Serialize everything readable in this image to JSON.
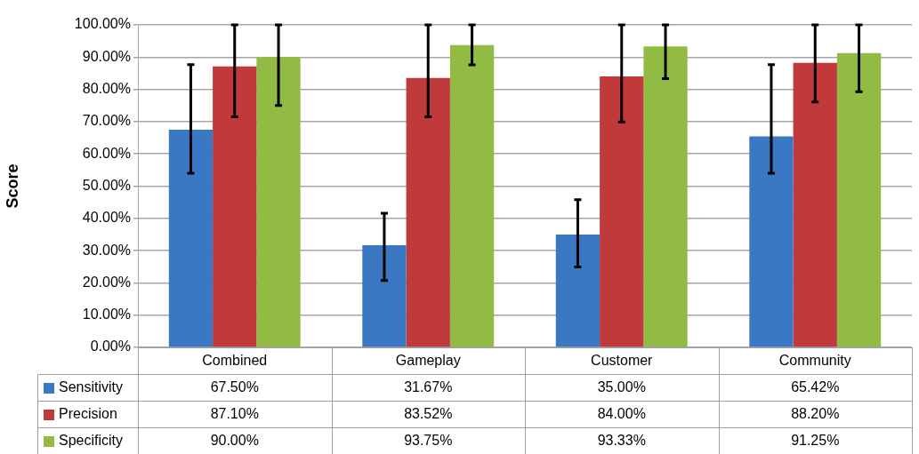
{
  "chart_data": {
    "type": "bar",
    "ylabel": "Score",
    "categories": [
      "Combined",
      "Gameplay",
      "Customer",
      "Community"
    ],
    "series": [
      {
        "name": "Sensitivity",
        "color": "#3a78c3",
        "values": [
          67.5,
          31.67,
          35.0,
          65.42
        ],
        "value_labels": [
          "67.50%",
          "31.67%",
          "35.00%",
          "65.42%"
        ],
        "errors": [
          [
            54.0,
            87.7
          ],
          [
            20.7,
            41.6
          ],
          [
            24.9,
            45.8
          ],
          [
            54.0,
            87.7
          ]
        ]
      },
      {
        "name": "Precision",
        "color": "#c0393b",
        "values": [
          87.1,
          83.52,
          84.0,
          88.2
        ],
        "value_labels": [
          "87.10%",
          "83.52%",
          "84.00%",
          "88.20%"
        ],
        "errors": [
          [
            71.5,
            100
          ],
          [
            71.5,
            100
          ],
          [
            69.9,
            100
          ],
          [
            76.1,
            100
          ]
        ]
      },
      {
        "name": "Specificity",
        "color": "#92bb44",
        "values": [
          90.0,
          93.75,
          93.33,
          91.25
        ],
        "value_labels": [
          "90.00%",
          "93.75%",
          "93.33%",
          "91.25%"
        ],
        "errors": [
          [
            75.0,
            100
          ],
          [
            87.6,
            100
          ],
          [
            83.3,
            100
          ],
          [
            79.3,
            100
          ]
        ]
      }
    ],
    "ylim": [
      0,
      100
    ],
    "yticks": [
      {
        "value": 0,
        "label": "0.00%"
      },
      {
        "value": 10,
        "label": "10.00%"
      },
      {
        "value": 20,
        "label": "20.00%"
      },
      {
        "value": 30,
        "label": "30.00%"
      },
      {
        "value": 40,
        "label": "40.00%"
      },
      {
        "value": 50,
        "label": "50.00%"
      },
      {
        "value": 60,
        "label": "60.00%"
      },
      {
        "value": 70,
        "label": "70.00%"
      },
      {
        "value": 80,
        "label": "80.00%"
      },
      {
        "value": 90,
        "label": "90.00%"
      },
      {
        "value": 100,
        "label": "100.00%"
      }
    ],
    "grid": "y",
    "legend": "bottom"
  }
}
